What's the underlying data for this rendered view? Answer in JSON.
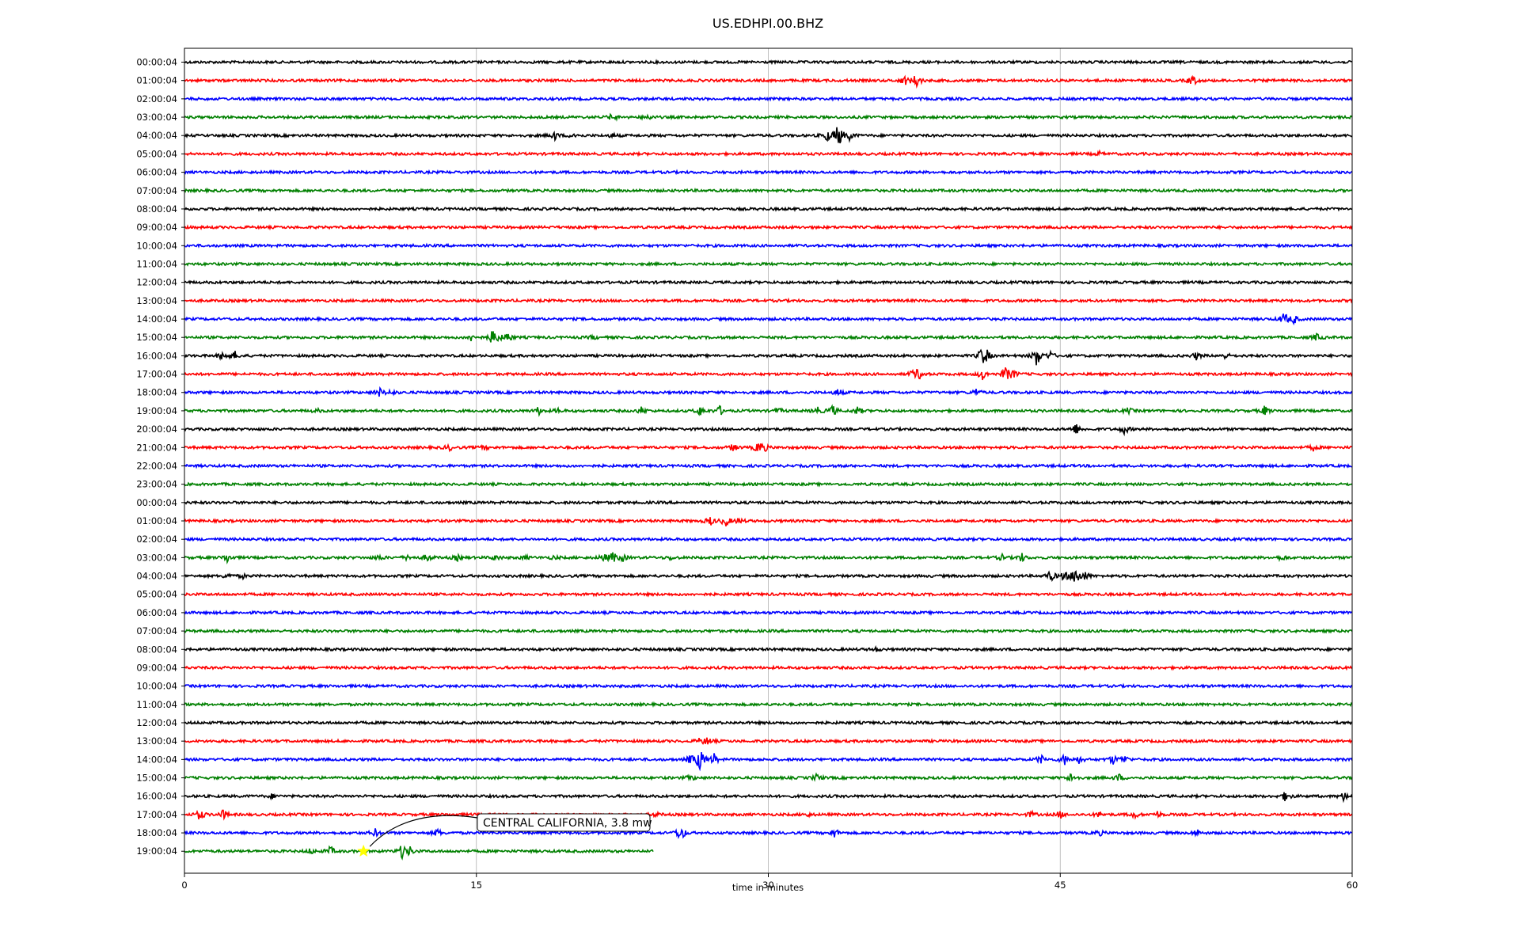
{
  "chart_data": {
    "type": "line",
    "title": "US.EDHPI.00.BHZ",
    "xlabel": "time in minutes",
    "ylabel": "",
    "xlim": [
      0,
      60
    ],
    "xticks": [
      "0",
      "15",
      "30",
      "45",
      "60"
    ],
    "grid": "vertical",
    "series_colors": [
      "#000000",
      "#ff0000",
      "#0000ff",
      "#008000"
    ],
    "rows": [
      {
        "label": "00:00:04",
        "events": []
      },
      {
        "label": "01:00:04",
        "events": [
          [
            37.0,
            0.5
          ],
          [
            37.6,
            0.8
          ],
          [
            51.8,
            0.6
          ]
        ]
      },
      {
        "label": "02:00:04",
        "events": []
      },
      {
        "label": "03:00:04",
        "events": [
          [
            22.0,
            0.4
          ],
          [
            23.8,
            0.3
          ]
        ]
      },
      {
        "label": "04:00:04",
        "events": [
          [
            19.0,
            0.5
          ],
          [
            20.0,
            0.3
          ],
          [
            22.0,
            0.2
          ],
          [
            33.0,
            0.6
          ],
          [
            33.6,
            1.4
          ],
          [
            34.2,
            0.5
          ]
        ]
      },
      {
        "label": "05:00:04",
        "events": [
          [
            47.0,
            0.2
          ]
        ]
      },
      {
        "label": "06:00:04",
        "events": []
      },
      {
        "label": "07:00:04",
        "events": []
      },
      {
        "label": "08:00:04",
        "events": []
      },
      {
        "label": "09:00:04",
        "events": []
      },
      {
        "label": "10:00:04",
        "events": []
      },
      {
        "label": "11:00:04",
        "events": []
      },
      {
        "label": "12:00:04",
        "events": []
      },
      {
        "label": "13:00:04",
        "events": []
      },
      {
        "label": "14:00:04",
        "events": [
          [
            56.5,
            0.7
          ],
          [
            57.0,
            0.5
          ]
        ]
      },
      {
        "label": "15:00:04",
        "events": [
          [
            14.8,
            0.5
          ],
          [
            15.9,
            1.2
          ],
          [
            16.6,
            0.6
          ],
          [
            21.0,
            0.2
          ],
          [
            58.2,
            0.4
          ]
        ]
      },
      {
        "label": "16:00:04",
        "events": [
          [
            2.0,
            0.6
          ],
          [
            2.6,
            0.4
          ],
          [
            41.0,
            1.0
          ],
          [
            41.2,
            0.5
          ],
          [
            43.8,
            1.2
          ],
          [
            44.5,
            0.4
          ],
          [
            52.0,
            0.4
          ],
          [
            53.5,
            0.3
          ]
        ]
      },
      {
        "label": "17:00:04",
        "events": [
          [
            37.5,
            0.6
          ],
          [
            37.8,
            0.4
          ],
          [
            41.0,
            0.6
          ],
          [
            42.2,
            0.8
          ],
          [
            42.6,
            0.4
          ]
        ]
      },
      {
        "label": "18:00:04",
        "events": [
          [
            10.0,
            0.5
          ],
          [
            10.6,
            0.3
          ],
          [
            33.6,
            0.4
          ],
          [
            40.7,
            0.4
          ]
        ]
      },
      {
        "label": "19:00:04",
        "events": [
          [
            6.8,
            0.2
          ],
          [
            18.2,
            0.4
          ],
          [
            19.2,
            0.2
          ],
          [
            23.5,
            0.4
          ],
          [
            26.5,
            0.5
          ],
          [
            27.5,
            0.5
          ],
          [
            30.5,
            0.3
          ],
          [
            32.5,
            0.4
          ],
          [
            33.3,
            0.6
          ],
          [
            34.6,
            0.4
          ],
          [
            48.5,
            0.3
          ],
          [
            55.5,
            0.5
          ]
        ]
      },
      {
        "label": "20:00:04",
        "events": [
          [
            45.8,
            0.6
          ],
          [
            48.3,
            0.5
          ]
        ]
      },
      {
        "label": "21:00:04",
        "events": [
          [
            13.6,
            0.3
          ],
          [
            15.4,
            0.2
          ],
          [
            28.2,
            0.4
          ],
          [
            29.5,
            0.7
          ],
          [
            29.8,
            0.3
          ],
          [
            58.0,
            0.3
          ]
        ]
      },
      {
        "label": "22:00:04",
        "events": []
      },
      {
        "label": "23:00:04",
        "events": []
      },
      {
        "label": "00:00:04",
        "events": []
      },
      {
        "label": "01:00:04",
        "events": [
          [
            27.0,
            0.5
          ],
          [
            27.8,
            0.6
          ],
          [
            28.5,
            0.3
          ]
        ]
      },
      {
        "label": "02:00:04",
        "events": []
      },
      {
        "label": "03:00:04",
        "events": [
          [
            2.2,
            0.5
          ],
          [
            10.0,
            0.3
          ],
          [
            11.5,
            0.3
          ],
          [
            12.5,
            0.4
          ],
          [
            14.0,
            0.3
          ],
          [
            16.0,
            0.3
          ],
          [
            17.5,
            0.2
          ],
          [
            19.0,
            0.2
          ],
          [
            21.5,
            0.4
          ],
          [
            22.0,
            0.6
          ],
          [
            22.5,
            0.4
          ],
          [
            25.0,
            0.2
          ],
          [
            42.0,
            0.3
          ],
          [
            43.0,
            0.5
          ],
          [
            56.4,
            0.3
          ]
        ]
      },
      {
        "label": "04:00:04",
        "events": [
          [
            2.2,
            0.3
          ],
          [
            3.0,
            0.2
          ],
          [
            44.5,
            0.6
          ],
          [
            45.2,
            0.5
          ],
          [
            45.8,
            1.2
          ],
          [
            46.3,
            0.4
          ]
        ]
      },
      {
        "label": "05:00:04",
        "events": []
      },
      {
        "label": "06:00:04",
        "events": []
      },
      {
        "label": "07:00:04",
        "events": []
      },
      {
        "label": "08:00:04",
        "events": [
          [
            35.5,
            0.2
          ]
        ]
      },
      {
        "label": "09:00:04",
        "events": []
      },
      {
        "label": "10:00:04",
        "events": []
      },
      {
        "label": "11:00:04",
        "events": []
      },
      {
        "label": "12:00:04",
        "events": []
      },
      {
        "label": "13:00:04",
        "events": [
          [
            26.5,
            0.3
          ],
          [
            26.9,
            0.4
          ]
        ]
      },
      {
        "label": "14:00:04",
        "events": [
          [
            26.0,
            0.5
          ],
          [
            26.5,
            1.3
          ],
          [
            27.2,
            0.6
          ],
          [
            44.0,
            0.5
          ],
          [
            45.2,
            0.6
          ],
          [
            46.0,
            0.4
          ],
          [
            47.7,
            0.5
          ],
          [
            48.3,
            0.4
          ]
        ]
      },
      {
        "label": "15:00:04",
        "events": [
          [
            26.0,
            0.3
          ],
          [
            32.5,
            0.4
          ],
          [
            45.6,
            0.6
          ],
          [
            48.0,
            0.4
          ]
        ]
      },
      {
        "label": "16:00:04",
        "events": [
          [
            4.5,
            0.2
          ],
          [
            56.6,
            0.6
          ],
          [
            59.6,
            0.5
          ]
        ]
      },
      {
        "label": "17:00:04",
        "events": [
          [
            0.8,
            0.6
          ],
          [
            2.0,
            0.5
          ],
          [
            24.2,
            0.2
          ],
          [
            32.0,
            0.2
          ],
          [
            43.5,
            0.3
          ],
          [
            45.0,
            0.4
          ],
          [
            47.0,
            0.3
          ],
          [
            48.8,
            0.4
          ],
          [
            50.0,
            0.3
          ]
        ]
      },
      {
        "label": "18:00:04",
        "events": [
          [
            9.8,
            0.4
          ],
          [
            13.0,
            0.4
          ],
          [
            25.5,
            1.0
          ],
          [
            33.4,
            0.5
          ],
          [
            47.0,
            0.3
          ],
          [
            52.0,
            0.4
          ]
        ]
      },
      {
        "label": "19:00:04",
        "end": 24.1,
        "events": [
          [
            6.5,
            0.3
          ],
          [
            7.5,
            0.5
          ],
          [
            11.2,
            0.8
          ],
          [
            11.6,
            0.4
          ]
        ]
      }
    ],
    "annotations": [
      {
        "text": "CENTRAL CALIFORNIA, 3.8 mw",
        "marker": "star",
        "marker_color": "#ffff00",
        "x": 9.2,
        "row": 43
      }
    ]
  }
}
